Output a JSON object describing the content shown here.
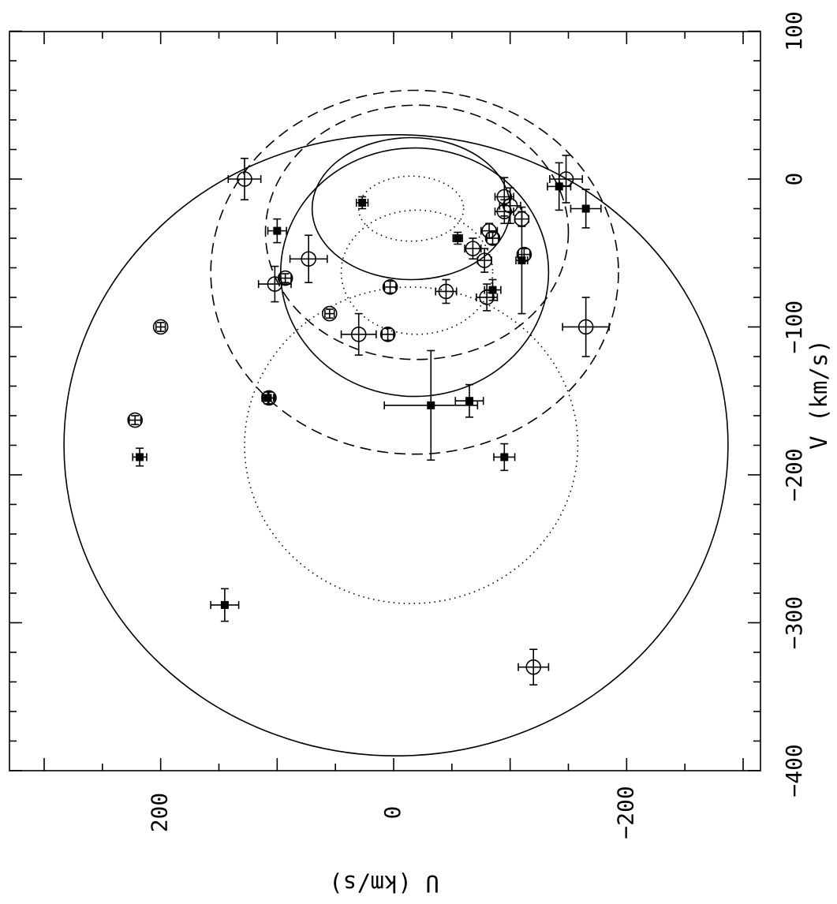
{
  "chart_data": {
    "type": "scatter",
    "title": "",
    "xlabel": "U (km/s)",
    "ylabel": "V (km/s)",
    "xlim": [
      330,
      -310
    ],
    "ylim": [
      -400,
      100
    ],
    "orientation": "rotated-90-counterclockwise",
    "x_ticks": [
      {
        "value": 200,
        "label": "200"
      },
      {
        "value": 0,
        "label": "0"
      },
      {
        "value": -200,
        "label": "-200"
      }
    ],
    "y_ticks": [
      {
        "value": 100,
        "label": "100"
      },
      {
        "value": 0,
        "label": "0"
      },
      {
        "value": -100,
        "label": "-100"
      },
      {
        "value": -200,
        "label": "-200"
      },
      {
        "value": -300,
        "label": "-300"
      },
      {
        "value": -400,
        "label": "-400"
      }
    ],
    "grid": false,
    "ellipses": [
      {
        "style": "solid",
        "center": [
          -2,
          -180
        ],
        "radius_u": 285,
        "radius_v": 210
      },
      {
        "style": "solid",
        "center": [
          -15,
          -20
        ],
        "radius_u": 85,
        "radius_v": 48
      },
      {
        "style": "solid",
        "center": [
          -18,
          -63
        ],
        "radius_u": 115,
        "radius_v": 84
      },
      {
        "style": "dashed",
        "center": [
          -18,
          -63
        ],
        "radius_u": 175,
        "radius_v": 123
      },
      {
        "style": "dashed",
        "center": [
          -20,
          -36
        ],
        "radius_u": 130,
        "radius_v": 86
      },
      {
        "style": "dotted",
        "center": [
          -15,
          -20
        ],
        "radius_u": 45,
        "radius_v": 22
      },
      {
        "style": "dotted",
        "center": [
          -20,
          -63
        ],
        "radius_u": 65,
        "radius_v": 42
      },
      {
        "style": "dotted",
        "center": [
          -15,
          -180
        ],
        "radius_u": 143,
        "radius_v": 107
      }
    ],
    "series": [
      {
        "marker": "open-circle",
        "points": [
          {
            "x": 128,
            "y": 0,
            "ex": 14,
            "ey": 14
          },
          {
            "x": 102,
            "y": -71,
            "ex": 14,
            "ey": 12
          },
          {
            "x": 93,
            "y": -67,
            "ex": 5,
            "ey": 3
          },
          {
            "x": 73,
            "y": -54,
            "ex": 16,
            "ey": 16
          },
          {
            "x": 200,
            "y": -100,
            "ex": 4,
            "ey": 3
          },
          {
            "x": 55,
            "y": -91,
            "ex": 4,
            "ey": 3
          },
          {
            "x": 30,
            "y": -105,
            "ex": 15,
            "ey": 14
          },
          {
            "x": 5,
            "y": -105,
            "ex": 5,
            "ey": 4
          },
          {
            "x": 3,
            "y": -73,
            "ex": 5,
            "ey": 4
          },
          {
            "x": -45,
            "y": -76,
            "ex": 9,
            "ey": 8
          },
          {
            "x": -68,
            "y": -47,
            "ex": 7,
            "ey": 7
          },
          {
            "x": -78,
            "y": -55,
            "ex": 6,
            "ey": 8
          },
          {
            "x": -80,
            "y": -80,
            "ex": 9,
            "ey": 9
          },
          {
            "x": -82,
            "y": -35,
            "ex": 7,
            "ey": 5
          },
          {
            "x": -85,
            "y": -40,
            "ex": 5,
            "ey": 4
          },
          {
            "x": -95,
            "y": -12,
            "ex": 8,
            "ey": 13
          },
          {
            "x": -95,
            "y": -22,
            "ex": 8,
            "ey": 8
          },
          {
            "x": -100,
            "y": -18,
            "ex": 9,
            "ey": 12
          },
          {
            "x": -110,
            "y": -27,
            "ex": 6,
            "ey": 5
          },
          {
            "x": -112,
            "y": -51,
            "ex": 5,
            "ey": 4
          },
          {
            "x": -148,
            "y": 0,
            "ex": 14,
            "ey": 16
          },
          {
            "x": -165,
            "y": -100,
            "ex": 20,
            "ey": 20
          },
          {
            "x": 222,
            "y": -163,
            "ex": 5,
            "ey": 3
          },
          {
            "x": 107,
            "y": -148,
            "ex": 5,
            "ey": 4
          },
          {
            "x": -120,
            "y": -330,
            "ex": 13,
            "ey": 12
          }
        ]
      },
      {
        "marker": "filled-square",
        "points": [
          {
            "x": 27,
            "y": -16,
            "ex": 5,
            "ey": 4
          },
          {
            "x": 100,
            "y": -35,
            "ex": 8,
            "ey": 8
          },
          {
            "x": -55,
            "y": -40,
            "ex": 4,
            "ey": 4
          },
          {
            "x": -85,
            "y": -75,
            "ex": 7,
            "ey": 7
          },
          {
            "x": -110,
            "y": -55,
            "ex": 5,
            "ey": 36
          },
          {
            "x": -142,
            "y": -5,
            "ex": 10,
            "ey": 16
          },
          {
            "x": -165,
            "y": -20,
            "ex": 13,
            "ey": 13
          },
          {
            "x": -32,
            "y": -153,
            "ex": 40,
            "ey": 37
          },
          {
            "x": -65,
            "y": -150,
            "ex": 12,
            "ey": 11
          },
          {
            "x": -95,
            "y": -188,
            "ex": 9,
            "ey": 9
          },
          {
            "x": 108,
            "y": -148,
            "ex": 5,
            "ey": 4
          },
          {
            "x": 218,
            "y": -188,
            "ex": 6,
            "ey": 6
          },
          {
            "x": 145,
            "y": -288,
            "ex": 12,
            "ey": 11
          }
        ]
      }
    ]
  }
}
